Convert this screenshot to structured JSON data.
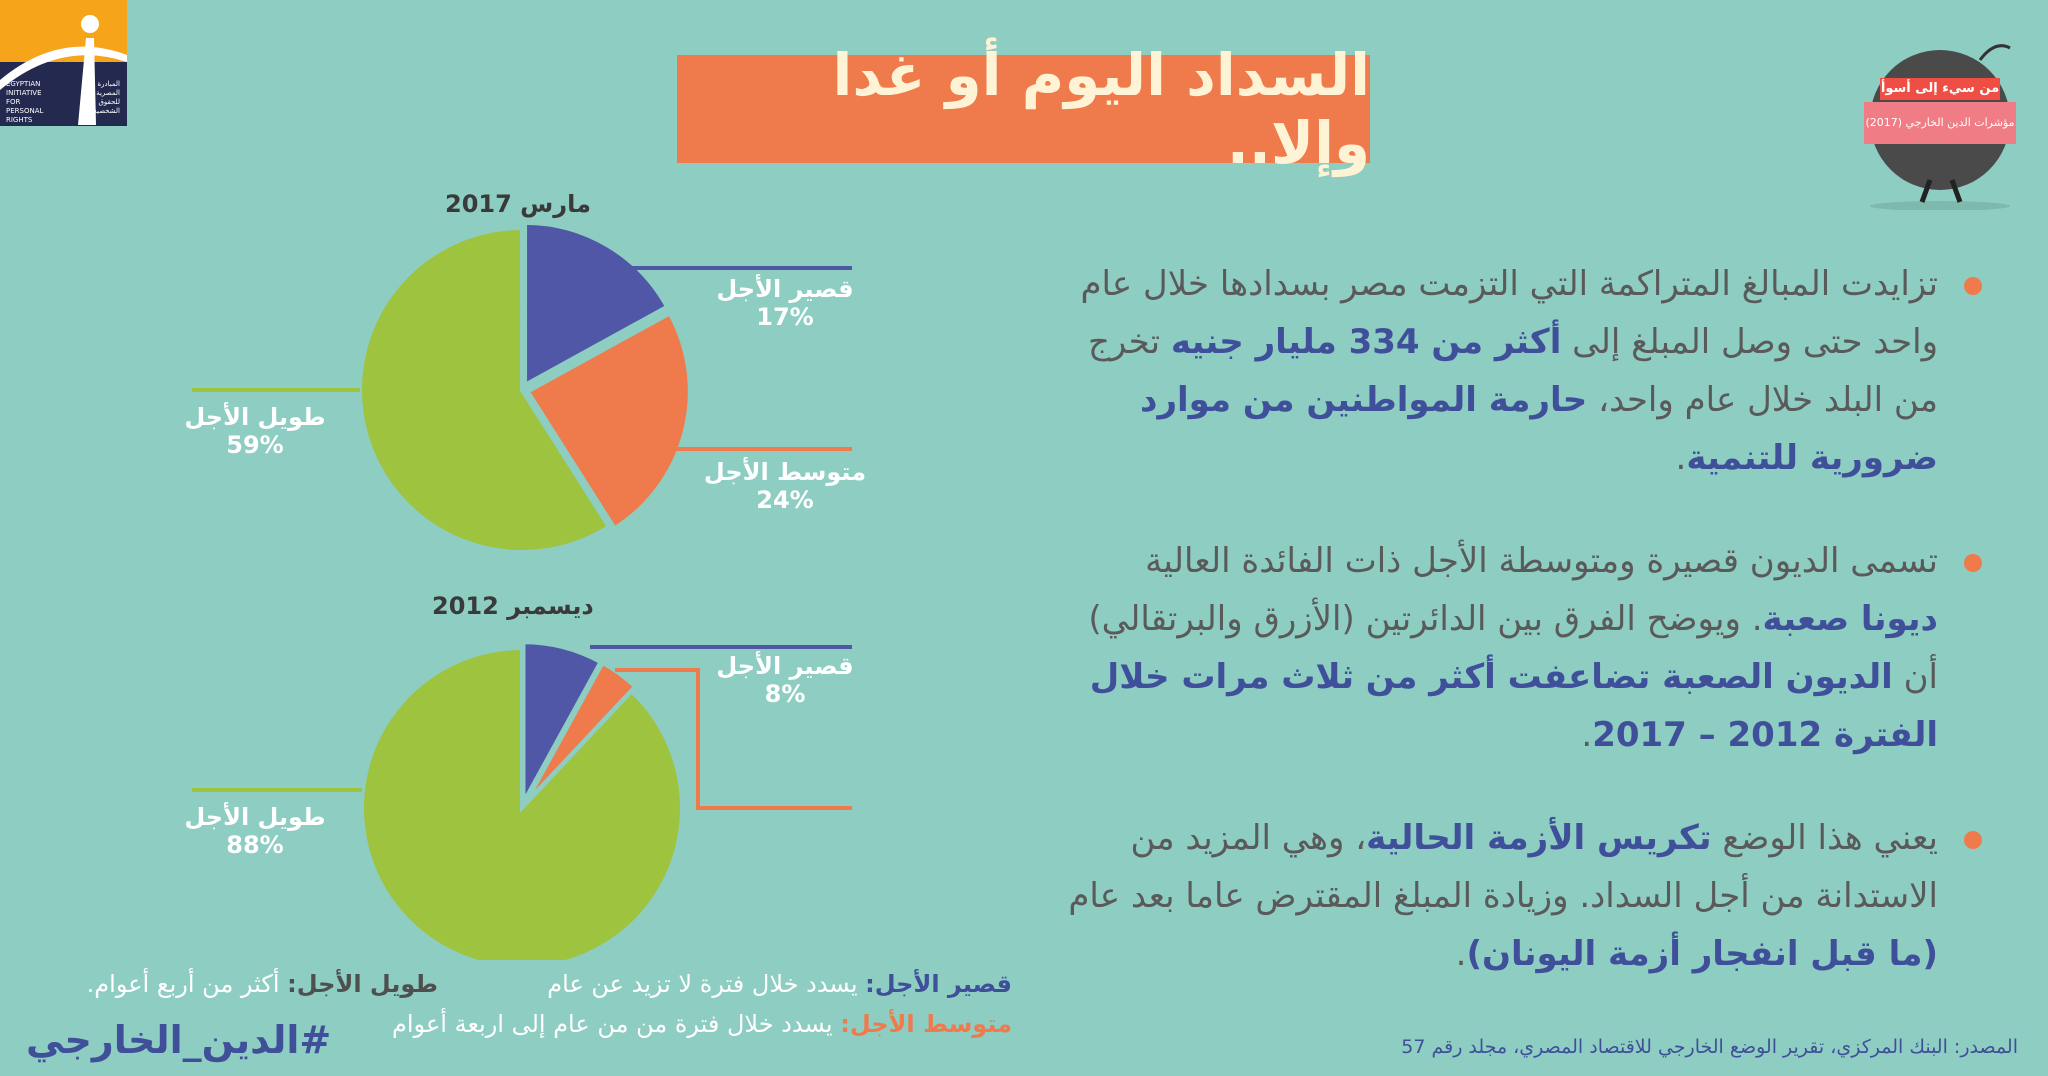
{
  "logo": {
    "text_en": "EGYPTIAN\nINITIATIVE\nFOR\nPERSONAL\nRIGHTS",
    "text_ar": "المبادرة\nالمصرية\nللحقوق\nالشخصية"
  },
  "title": "السداد اليوم أو غدا وإلا..",
  "badge": {
    "line1": "من سيء إلى أسوأ",
    "line2": "مؤشرات الدين الخارجي (2017)"
  },
  "colors": {
    "background": "#8ecdc2",
    "short": "#5057a6",
    "medium": "#ef7a4b",
    "long": "#9dc33f",
    "title_box": "#ef7a4b",
    "highlight": "#3f4f99"
  },
  "bullets": [
    {
      "parts": [
        {
          "t": "تزايدت المبالغ المتراكمة التي التزمت مصر بسدادها خلال عام واحد حتى وصل المبلغ إلى ",
          "hl": false
        },
        {
          "t": "أكثر من 334 مليار جنيه",
          "hl": true
        },
        {
          "t": " تخرج من البلد خلال عام واحد، ",
          "hl": false
        },
        {
          "t": "حارمة المواطنين من موارد ضرورية للتنمية",
          "hl": true
        },
        {
          "t": ".",
          "hl": false
        }
      ]
    },
    {
      "parts": [
        {
          "t": "تسمى الديون قصيرة ومتوسطة الأجل ذات الفائدة العالية ",
          "hl": false
        },
        {
          "t": "ديونا صعبة",
          "hl": true
        },
        {
          "t": ". ويوضح الفرق بين الدائرتين (الأزرق والبرتقالي) أن ",
          "hl": false
        },
        {
          "t": "الديون الصعبة تضاعفت أكثر من ثلاث مرات خلال الفترة 2012 – 2017",
          "hl": true
        },
        {
          "t": ".",
          "hl": false
        }
      ]
    },
    {
      "parts": [
        {
          "t": "يعني هذا الوضع ",
          "hl": false
        },
        {
          "t": "تكريس الأزمة الحالية",
          "hl": true
        },
        {
          "t": "، وهي المزيد من الاستدانة من أجل السداد. وزيادة المبلغ المقترض عاما بعد عام ",
          "hl": false
        },
        {
          "t": "(ما قبل انفجار أزمة اليونان)",
          "hl": true
        },
        {
          "t": ".",
          "hl": false
        }
      ]
    }
  ],
  "chart_data": [
    {
      "type": "pie",
      "title": "مارس 2017",
      "categories": [
        "قصير الأجل",
        "متوسط الأجل",
        "طويل الأجل"
      ],
      "values": [
        17,
        24,
        59
      ],
      "labels": [
        "17%",
        "24%",
        "59%"
      ]
    },
    {
      "type": "pie",
      "title": "ديسمبر 2012",
      "categories": [
        "قصير الأجل",
        "متوسط الأجل",
        "طويل الأجل"
      ],
      "values": [
        8,
        4,
        88
      ],
      "labels": [
        "8%",
        "",
        "88%"
      ]
    }
  ],
  "legend": {
    "short_key": "قصير الأجل:",
    "short_desc": " يسدد خلال فترة لا تزيد عن عام",
    "long_key": "طويل الأجل:",
    "long_desc": " أكثر من أربع أعوام.",
    "medium_key": "متوسط الأجل:",
    "medium_desc": " يسدد خلال فترة من من عام إلى اربعة أعوام"
  },
  "hashtag": "#الدين_الخارجي",
  "source": "المصدر: البنك المركزي، تقرير الوضع الخارجي للاقتصاد المصري، مجلد رقم 57"
}
